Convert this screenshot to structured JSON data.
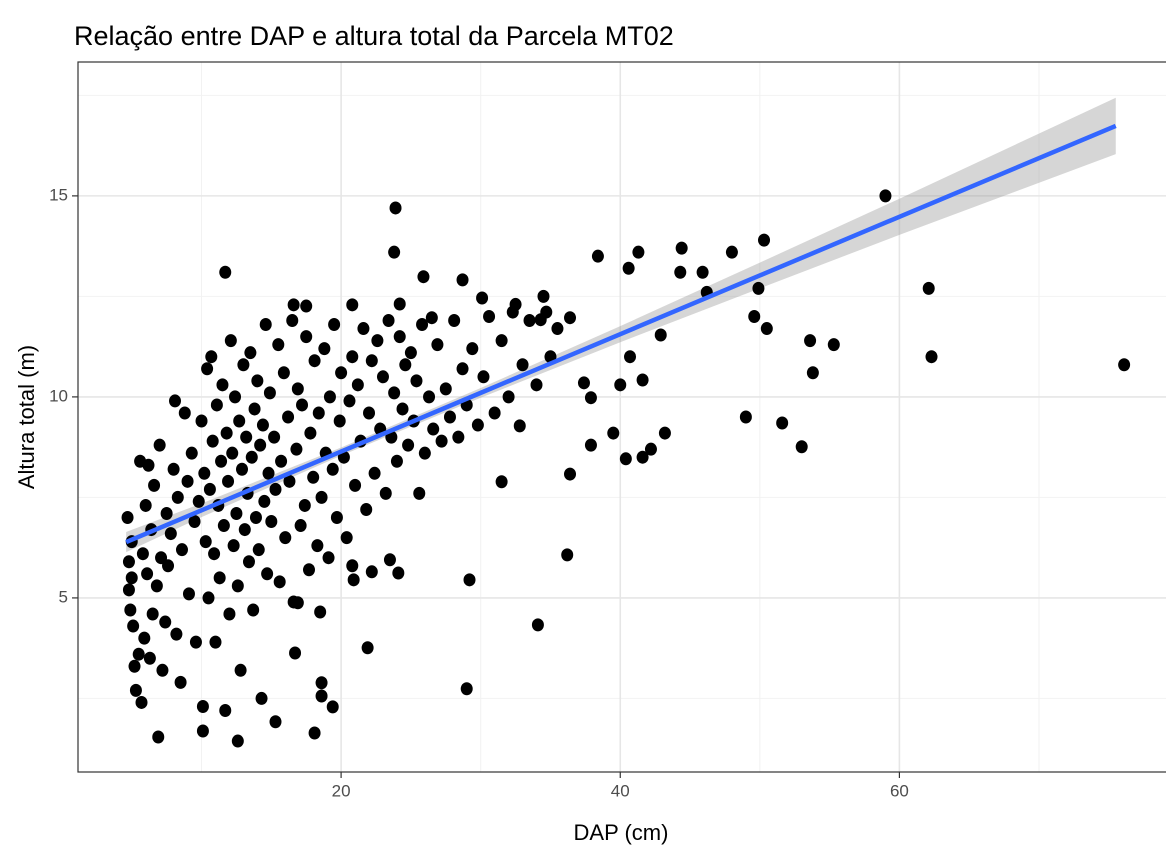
{
  "chart_data": {
    "type": "scatter",
    "title": "Relação entre DAP e altura total da Parcela MT02",
    "x_label": "DAP (cm)",
    "y_label": "Altura total (m)",
    "xlim": [
      1.15,
      79.1
    ],
    "ylim": [
      0.67,
      18.33
    ],
    "xticks": [
      20,
      40,
      60
    ],
    "yticks": [
      5,
      10,
      15
    ],
    "x_minor_grid": [
      10,
      30,
      50,
      70
    ],
    "y_minor_grid": [
      2.5,
      7.5,
      12.5,
      17.5
    ],
    "grid": true,
    "color": "#000000",
    "x": [
      59.0,
      62.1,
      62.3,
      76.1,
      23.9,
      23.8,
      11.7,
      50.3,
      48.0,
      44.4,
      44.3,
      45.9,
      46.2,
      41.3,
      40.6,
      38.4,
      49.9,
      49.6,
      50.5,
      53.6,
      55.3,
      53.8,
      49.0,
      51.6,
      53.0,
      43.2,
      42.2,
      41.6,
      40.4,
      39.5,
      37.9,
      36.4,
      36.2,
      34.1,
      31.5,
      29.2,
      29.0,
      32.8,
      40.7,
      41.6,
      40.0,
      37.4,
      37.9,
      42.9,
      36.4,
      34.3,
      34.7,
      32.3,
      30.1,
      28.7,
      26.5,
      25.9,
      24.2,
      20.8,
      17.5,
      16.6,
      6.9,
      12.6,
      10.1,
      18.1,
      15.3,
      21.9,
      19.4,
      18.6,
      18.6,
      16.7,
      18.5,
      16.9,
      20.9,
      22.2,
      24.1,
      23.5,
      20.8,
      4.7,
      4.8,
      4.8,
      4.9,
      5.0,
      5.0,
      5.1,
      5.2,
      5.3,
      5.5,
      5.6,
      5.7,
      5.8,
      5.9,
      6.0,
      6.1,
      6.2,
      6.3,
      6.4,
      6.5,
      6.6,
      6.8,
      7.0,
      7.1,
      7.2,
      7.4,
      7.5,
      7.6,
      7.8,
      8.0,
      8.1,
      8.2,
      8.3,
      8.5,
      8.6,
      8.8,
      9.0,
      9.1,
      9.3,
      9.5,
      9.6,
      9.8,
      10.0,
      10.1,
      10.2,
      10.3,
      10.4,
      10.5,
      10.6,
      10.7,
      10.8,
      10.9,
      11.0,
      11.1,
      11.2,
      11.3,
      11.4,
      11.5,
      11.6,
      11.7,
      11.8,
      11.9,
      12.0,
      12.1,
      12.2,
      12.3,
      12.4,
      12.5,
      12.6,
      12.7,
      12.8,
      12.9,
      13.0,
      13.1,
      13.2,
      13.3,
      13.4,
      13.5,
      13.6,
      13.7,
      13.8,
      13.9,
      14.0,
      14.1,
      14.2,
      14.3,
      14.4,
      14.5,
      14.6,
      14.7,
      14.8,
      14.9,
      15.0,
      15.2,
      15.3,
      15.5,
      15.6,
      15.7,
      15.9,
      16.0,
      16.2,
      16.3,
      16.5,
      16.6,
      16.8,
      16.9,
      17.1,
      17.2,
      17.4,
      17.5,
      17.7,
      17.8,
      18.0,
      18.1,
      18.3,
      18.4,
      18.6,
      18.8,
      18.9,
      19.1,
      19.2,
      19.4,
      19.5,
      19.7,
      19.9,
      20.0,
      20.2,
      20.4,
      20.6,
      20.8,
      21.0,
      21.2,
      21.4,
      21.6,
      21.8,
      22.0,
      22.2,
      22.4,
      22.6,
      22.8,
      23.0,
      23.2,
      23.4,
      23.6,
      23.8,
      24.0,
      24.2,
      24.4,
      24.6,
      24.8,
      25.0,
      25.2,
      25.4,
      25.6,
      25.8,
      26.0,
      26.3,
      26.6,
      26.9,
      27.2,
      27.5,
      27.8,
      28.1,
      28.4,
      28.7,
      29.0,
      29.4,
      29.8,
      30.2,
      30.6,
      31.0,
      31.5,
      32.0,
      32.5,
      33.0,
      33.5,
      34.0,
      34.5,
      35.0,
      35.5
    ],
    "values": [
      15.0,
      12.7,
      11.0,
      10.8,
      14.7,
      13.6,
      13.1,
      13.9,
      13.6,
      13.7,
      13.1,
      13.1,
      12.6,
      13.6,
      13.2,
      13.5,
      12.7,
      12.0,
      11.7,
      11.4,
      11.3,
      10.6,
      9.5,
      9.35,
      8.76,
      9.1,
      8.7,
      8.5,
      8.46,
      9.1,
      8.8,
      8.08,
      6.07,
      4.33,
      7.89,
      5.45,
      2.74,
      9.28,
      11.0,
      10.42,
      10.3,
      10.35,
      9.98,
      11.54,
      11.97,
      11.92,
      12.11,
      12.11,
      12.46,
      12.91,
      11.97,
      12.99,
      12.31,
      12.29,
      12.26,
      12.29,
      1.54,
      1.44,
      1.69,
      1.64,
      1.92,
      3.76,
      2.29,
      2.56,
      2.89,
      3.63,
      4.65,
      4.88,
      5.45,
      5.65,
      5.62,
      5.95,
      5.8,
      7.0,
      5.9,
      5.2,
      4.7,
      6.4,
      5.5,
      4.3,
      3.3,
      2.7,
      3.6,
      8.4,
      2.4,
      6.1,
      4.0,
      7.3,
      5.6,
      8.3,
      3.5,
      6.7,
      4.6,
      7.8,
      5.3,
      8.8,
      6.0,
      3.2,
      4.4,
      7.1,
      5.8,
      6.6,
      8.2,
      9.9,
      4.1,
      7.5,
      2.9,
      6.2,
      9.6,
      7.9,
      5.1,
      8.6,
      6.9,
      3.9,
      7.4,
      9.4,
      2.3,
      8.1,
      6.4,
      10.7,
      5.0,
      7.7,
      11.0,
      8.9,
      6.1,
      3.9,
      9.8,
      7.3,
      5.5,
      8.4,
      10.3,
      6.8,
      2.2,
      9.1,
      7.9,
      4.6,
      11.4,
      8.6,
      6.3,
      10.0,
      7.1,
      5.3,
      9.4,
      3.2,
      8.2,
      10.8,
      6.7,
      9.0,
      7.6,
      5.9,
      11.1,
      8.5,
      4.7,
      9.7,
      7.0,
      10.4,
      6.2,
      8.8,
      2.5,
      9.3,
      7.4,
      11.8,
      5.6,
      8.1,
      10.1,
      6.9,
      9.0,
      7.7,
      11.3,
      5.4,
      8.4,
      10.6,
      6.5,
      9.5,
      7.9,
      11.9,
      4.9,
      8.7,
      10.2,
      6.8,
      9.8,
      7.3,
      11.5,
      5.7,
      9.1,
      8.0,
      10.9,
      6.3,
      9.6,
      7.5,
      11.2,
      8.6,
      6.0,
      10.0,
      8.2,
      11.8,
      7.0,
      9.4,
      10.6,
      8.5,
      6.5,
      9.9,
      11.0,
      7.8,
      10.3,
      8.9,
      11.7,
      7.2,
      9.6,
      10.9,
      8.1,
      11.4,
      9.2,
      10.5,
      7.6,
      11.9,
      9.0,
      10.1,
      8.4,
      11.5,
      9.7,
      10.8,
      8.8,
      11.1,
      9.4,
      10.4,
      7.6,
      11.8,
      8.6,
      10.0,
      9.2,
      11.3,
      8.9,
      10.2,
      9.5,
      11.9,
      9.0,
      10.7,
      9.8,
      11.2,
      9.3,
      10.5,
      12.0,
      9.6,
      11.4,
      10.0,
      12.3,
      10.8,
      11.9,
      10.3,
      12.5,
      11.0,
      11.7
    ],
    "fit": {
      "color": "#3366ff",
      "band_color": "#999999",
      "x": [
        4.6,
        10,
        20,
        30,
        40,
        50,
        60,
        75.5
      ],
      "values": [
        6.39,
        7.18,
        8.64,
        10.1,
        11.56,
        13.02,
        14.48,
        16.74
      ],
      "lower": [
        6.14,
        7.01,
        8.54,
        9.98,
        11.36,
        12.7,
        14.03,
        16.04
      ],
      "upper": [
        6.64,
        7.35,
        8.74,
        10.22,
        11.76,
        13.34,
        14.93,
        17.44
      ]
    }
  }
}
